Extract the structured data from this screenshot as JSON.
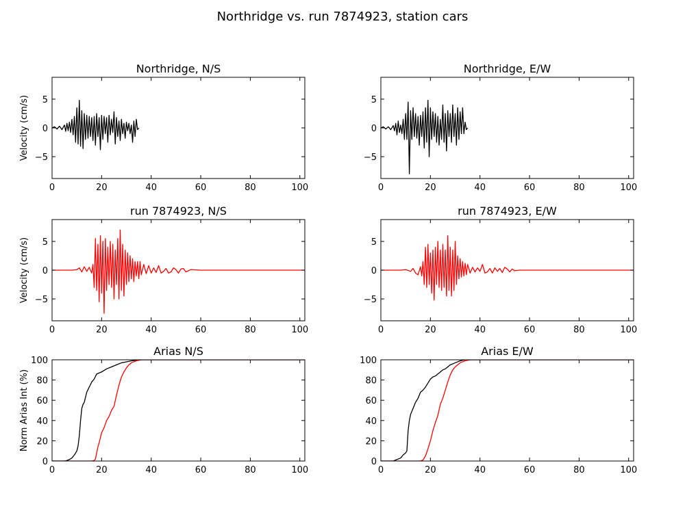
{
  "figure": {
    "title": "Northridge vs. run 7874923, station cars"
  },
  "colors": {
    "recorded": "#000000",
    "simulated": "#ff0000",
    "background": "#ffffff"
  },
  "chart_data": [
    {
      "type": "line",
      "title": "Northridge, N/S",
      "xlabel": "",
      "ylabel": "Velocity (cm/s)",
      "xlim": [
        0,
        102
      ],
      "ylim": [
        -8.8,
        8.8
      ],
      "xticks": [
        0,
        20,
        40,
        60,
        80,
        100
      ],
      "yticks": [
        -5,
        0,
        5
      ],
      "grid": false,
      "series": [
        {
          "color": "#000000",
          "x": [
            0,
            1,
            2,
            3,
            4,
            5,
            5.5,
            6,
            6.5,
            7,
            7.5,
            8,
            8.5,
            9,
            9.5,
            10,
            10.5,
            11,
            11.5,
            12,
            12.5,
            13,
            13.5,
            14,
            14.5,
            15,
            15.5,
            16,
            16.5,
            17,
            17.5,
            18,
            18.5,
            19,
            19.5,
            20,
            20.5,
            21,
            21.5,
            22,
            22.5,
            23,
            23.5,
            24,
            24.5,
            25,
            25.5,
            26,
            26.5,
            27,
            27.5,
            28,
            28.5,
            29,
            29.5,
            30,
            30.5,
            31,
            31.5,
            32,
            32.5,
            33,
            33.5,
            34,
            34.5,
            35
          ],
          "y": [
            0,
            0.2,
            -0.2,
            0.3,
            -0.3,
            0.5,
            -0.6,
            0.8,
            -0.5,
            1.0,
            -0.8,
            1.5,
            -1.2,
            2.0,
            -2.5,
            3.5,
            -2.8,
            4.8,
            -3.2,
            3.0,
            -3.6,
            2.5,
            -2.0,
            2.2,
            -1.8,
            2.0,
            -1.5,
            1.8,
            -2.2,
            2.0,
            -3.0,
            2.5,
            -1.5,
            1.8,
            -3.8,
            2.2,
            -2.0,
            2.0,
            -1.0,
            1.8,
            -2.5,
            2.2,
            -1.2,
            1.5,
            -0.8,
            2.8,
            -2.8,
            1.8,
            -1.5,
            1.2,
            -2.2,
            1.5,
            -1.0,
            0.8,
            -1.8,
            1.0,
            -0.5,
            0.8,
            -1.0,
            0.5,
            -2.5,
            1.2,
            -1.5,
            1.5,
            -0.3,
            0
          ]
        }
      ]
    },
    {
      "type": "line",
      "title": "Northridge, E/W",
      "xlabel": "",
      "ylabel": "",
      "xlim": [
        0,
        102
      ],
      "ylim": [
        -8.8,
        8.8
      ],
      "xticks": [
        0,
        20,
        40,
        60,
        80,
        100
      ],
      "yticks": [
        -5,
        0,
        5
      ],
      "grid": false,
      "series": [
        {
          "color": "#000000",
          "x": [
            0,
            1,
            2,
            3,
            4,
            5,
            5.5,
            6,
            6.5,
            7,
            7.5,
            8,
            8.5,
            9,
            9.5,
            10,
            10.5,
            11,
            11.5,
            12,
            12.5,
            13,
            13.5,
            14,
            14.5,
            15,
            15.5,
            16,
            16.5,
            17,
            17.5,
            18,
            18.5,
            19,
            19.5,
            20,
            20.5,
            21,
            21.5,
            22,
            22.5,
            23,
            23.5,
            24,
            24.5,
            25,
            25.5,
            26,
            26.5,
            27,
            27.5,
            28,
            28.5,
            29,
            29.5,
            30,
            30.5,
            31,
            31.5,
            32,
            32.5,
            33,
            33.5,
            34,
            34.5,
            35
          ],
          "y": [
            0,
            0.2,
            -0.2,
            0.2,
            -0.3,
            0.4,
            -0.5,
            0.8,
            -1.2,
            1.2,
            -0.8,
            0.5,
            -1.0,
            1.5,
            -2.0,
            2.5,
            -2.0,
            4.5,
            -8.0,
            3.0,
            -2.0,
            3.5,
            -1.5,
            2.5,
            -1.8,
            2.0,
            -3.0,
            2.2,
            -1.5,
            2.8,
            -3.5,
            3.5,
            -2.5,
            4.8,
            -5.0,
            3.5,
            -2.0,
            2.8,
            -1.5,
            2.5,
            -2.5,
            2.0,
            -3.0,
            1.5,
            -2.0,
            4.0,
            -2.5,
            2.5,
            -4.0,
            3.0,
            -1.5,
            2.5,
            -2.5,
            4.0,
            -1.5,
            2.5,
            -3.0,
            3.5,
            -2.0,
            2.8,
            -1.0,
            3.5,
            -1.0,
            1.0,
            -0.3,
            0
          ]
        }
      ]
    },
    {
      "type": "line",
      "title": "run 7874923, N/S",
      "xlabel": "",
      "ylabel": "Velocity (cm/s)",
      "xlim": [
        0,
        102
      ],
      "ylim": [
        -8.8,
        8.8
      ],
      "xticks": [
        0,
        20,
        40,
        60,
        80,
        100
      ],
      "yticks": [
        -5,
        0,
        5
      ],
      "grid": false,
      "series": [
        {
          "color": "#ff0000",
          "x": [
            0,
            8,
            10,
            11,
            12,
            13,
            14,
            15,
            16,
            16.5,
            17,
            17.5,
            18,
            18.5,
            19,
            19.5,
            20,
            20.5,
            21,
            21.5,
            22,
            22.5,
            23,
            23.5,
            24,
            24.5,
            25,
            25.5,
            26,
            26.5,
            27,
            27.5,
            28,
            28.5,
            29,
            29.5,
            30,
            30.5,
            31,
            31.5,
            32,
            32.5,
            33,
            33.5,
            34,
            34.5,
            35,
            35.5,
            36,
            37,
            38,
            39,
            40,
            41,
            42,
            43,
            44,
            45,
            46,
            47,
            48,
            49,
            50,
            51,
            52,
            53,
            54,
            56,
            60,
            70,
            80,
            90,
            102
          ],
          "y": [
            0,
            0,
            0.1,
            0.4,
            -0.3,
            0.6,
            -0.2,
            0.5,
            -0.5,
            1.0,
            -3.0,
            5.5,
            -3.5,
            4.5,
            -5.5,
            6.0,
            -4.0,
            5.0,
            -7.5,
            5.5,
            -3.5,
            4.0,
            -2.5,
            5.0,
            -3.0,
            4.5,
            -5.0,
            3.5,
            -2.5,
            5.5,
            -5.0,
            7.0,
            -3.5,
            4.5,
            -4.5,
            3.5,
            -2.5,
            3.0,
            -2.0,
            2.5,
            -1.5,
            2.0,
            -2.0,
            1.5,
            -1.0,
            1.5,
            -1.5,
            1.5,
            -0.8,
            1.0,
            -0.6,
            0.8,
            -0.5,
            0.4,
            -0.4,
            0.8,
            -0.5,
            -0.2,
            0.3,
            -0.5,
            -0.3,
            0.4,
            0.1,
            -0.5,
            0.2,
            0.3,
            -0.3,
            0.1,
            0,
            0,
            0,
            0,
            0
          ]
        }
      ]
    },
    {
      "type": "line",
      "title": "run 7874923, E/W",
      "xlabel": "",
      "ylabel": "",
      "xlim": [
        0,
        102
      ],
      "ylim": [
        -8.8,
        8.8
      ],
      "xticks": [
        0,
        20,
        40,
        60,
        80,
        100
      ],
      "yticks": [
        -5,
        0,
        5
      ],
      "grid": false,
      "series": [
        {
          "color": "#ff0000",
          "x": [
            0,
            8,
            10,
            12,
            13,
            14,
            15,
            16,
            16.5,
            17,
            17.5,
            18,
            18.5,
            19,
            19.5,
            20,
            20.5,
            21,
            21.5,
            22,
            22.5,
            23,
            23.5,
            24,
            24.5,
            25,
            25.5,
            26,
            26.5,
            27,
            27.5,
            28,
            28.5,
            29,
            29.5,
            30,
            30.5,
            31,
            31.5,
            32,
            32.5,
            33,
            33.5,
            34,
            34.5,
            35,
            36,
            37,
            38,
            39,
            40,
            41,
            42,
            43,
            44,
            45,
            46,
            47,
            48,
            49,
            50,
            51,
            52,
            53,
            54,
            56,
            60,
            70,
            80,
            90,
            102
          ],
          "y": [
            0,
            0,
            0.1,
            -0.2,
            0.3,
            -0.5,
            -0.8,
            0.6,
            -1.0,
            1.5,
            -2.5,
            4.0,
            -3.0,
            4.5,
            -2.5,
            3.0,
            -4.0,
            3.5,
            -5.2,
            4.0,
            -2.5,
            5.0,
            -3.0,
            3.5,
            -3.5,
            4.5,
            -3.0,
            3.5,
            -4.5,
            6.0,
            -3.5,
            4.0,
            -4.5,
            3.5,
            -3.5,
            5.0,
            -2.5,
            2.5,
            -1.5,
            2.0,
            -1.2,
            1.5,
            -1.0,
            1.2,
            -0.8,
            1.0,
            -0.5,
            0.5,
            -0.3,
            0.4,
            -0.2,
            1.0,
            -0.5,
            -0.3,
            0.3,
            -0.5,
            0.4,
            -0.2,
            0.3,
            -0.4,
            0.5,
            0.2,
            -0.3,
            0.2,
            -0.1,
            0,
            0,
            0,
            0,
            0,
            0
          ]
        }
      ]
    },
    {
      "type": "line",
      "title": "Arias N/S",
      "xlabel": "",
      "ylabel": "Norm Arias Int (%)",
      "xlim": [
        0,
        102
      ],
      "ylim": [
        0,
        100
      ],
      "xticks": [
        0,
        20,
        40,
        60,
        80,
        100
      ],
      "yticks": [
        0,
        20,
        40,
        60,
        80,
        100
      ],
      "grid": false,
      "series": [
        {
          "color": "#000000",
          "x": [
            0,
            5,
            6,
            7,
            8,
            9,
            10,
            10.5,
            11,
            11.5,
            12,
            12.5,
            13,
            13.5,
            14,
            15,
            16,
            17,
            18,
            19,
            20,
            22,
            24,
            26,
            28,
            30,
            32,
            34,
            36,
            40,
            60,
            80,
            102
          ],
          "y": [
            0,
            0,
            0.5,
            1.5,
            3,
            6,
            10,
            15,
            25,
            40,
            52,
            56,
            58,
            63,
            68,
            73,
            78,
            81,
            86,
            87,
            88,
            91,
            93,
            95,
            97,
            98,
            99,
            99.5,
            100,
            100,
            100,
            100,
            100
          ]
        },
        {
          "color": "#ff0000",
          "x": [
            0,
            16,
            17,
            17.5,
            18,
            18.5,
            19,
            20,
            21,
            22,
            23,
            24,
            25,
            26,
            26.5,
            27,
            28,
            29,
            30,
            31,
            32,
            33,
            34,
            35,
            36,
            40,
            60,
            80,
            102
          ],
          "y": [
            0,
            0,
            0.5,
            2,
            8,
            14,
            18,
            28,
            33,
            40,
            44,
            50,
            54,
            65,
            70,
            75,
            83,
            88,
            92,
            95,
            97,
            98,
            99,
            99.5,
            100,
            100,
            100,
            100,
            100
          ]
        }
      ]
    },
    {
      "type": "line",
      "title": "Arias E/W",
      "xlabel": "",
      "ylabel": "",
      "xlim": [
        0,
        102
      ],
      "ylim": [
        0,
        100
      ],
      "xticks": [
        0,
        20,
        40,
        60,
        80,
        100
      ],
      "yticks": [
        0,
        20,
        40,
        60,
        80,
        100
      ],
      "grid": false,
      "series": [
        {
          "color": "#000000",
          "x": [
            0,
            5,
            6,
            7,
            8,
            9,
            10,
            10.5,
            11,
            11.5,
            12,
            13,
            14,
            15,
            16,
            17,
            18,
            19,
            20,
            21,
            22,
            23,
            24,
            25,
            26,
            27,
            28,
            29,
            30,
            31,
            32,
            33,
            34,
            36,
            40,
            60,
            80,
            102
          ],
          "y": [
            0,
            0,
            1,
            2,
            3,
            6,
            8,
            10,
            30,
            40,
            46,
            52,
            58,
            62,
            68,
            70,
            73,
            77,
            81,
            83,
            84,
            86,
            88,
            90,
            91,
            93,
            95,
            96,
            97,
            98,
            99,
            99.5,
            100,
            100,
            100,
            100,
            100,
            100
          ]
        },
        {
          "color": "#ff0000",
          "x": [
            0,
            16,
            17,
            18,
            19,
            20,
            21,
            22,
            23,
            24,
            25,
            26,
            27,
            28,
            29,
            30,
            31,
            32,
            33,
            34,
            35,
            36,
            40,
            60,
            80,
            102
          ],
          "y": [
            0,
            0,
            1,
            5,
            12,
            20,
            30,
            38,
            45,
            56,
            62,
            70,
            78,
            85,
            90,
            93,
            95,
            97,
            98,
            99,
            99.5,
            100,
            100,
            100,
            100,
            100
          ]
        }
      ]
    }
  ]
}
